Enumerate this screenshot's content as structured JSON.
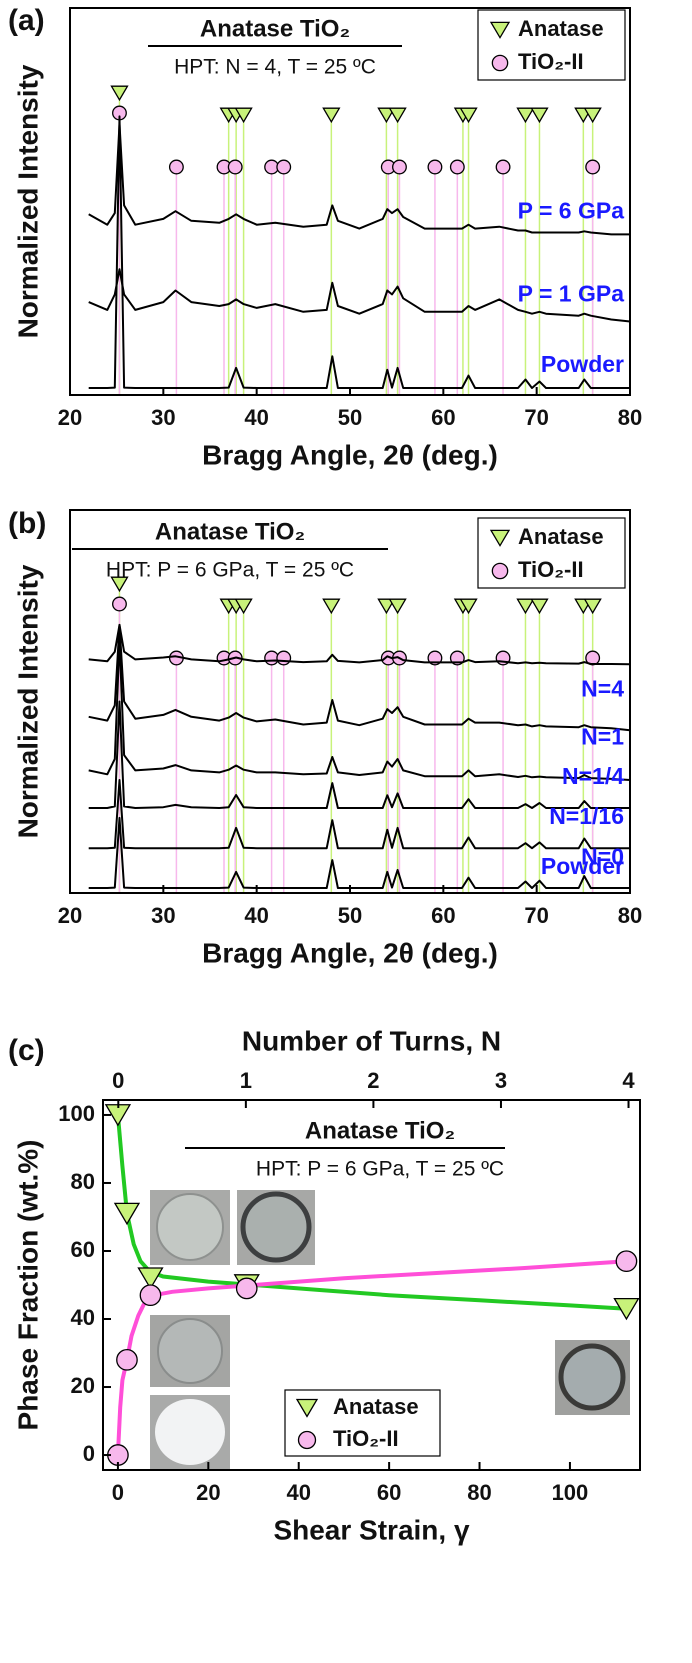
{
  "chart_data": [
    {
      "type": "line",
      "panel_label": "(a)",
      "title": "Anatase TiO₂",
      "subtitle": "HPT: N = 4, T = 25 ºC",
      "xlabel": "Bragg Angle, 2θ (deg.)",
      "ylabel": "Normalized Intensity",
      "xlim": [
        20,
        80
      ],
      "xticks": [
        20,
        30,
        40,
        50,
        60,
        70,
        80
      ],
      "ylim": [
        0,
        100
      ],
      "x": [
        22,
        24,
        24.8,
        25.3,
        25.8,
        27,
        30,
        31.3,
        33,
        36,
        37,
        37.8,
        38.6,
        40,
        42,
        45,
        47.5,
        48.1,
        48.7,
        51,
        53.5,
        54,
        54.5,
        55.1,
        55.7,
        58,
        62,
        62.7,
        63.4,
        66,
        68,
        68.8,
        69.5,
        70.3,
        71,
        74.5,
        75.1,
        75.8,
        78,
        80
      ],
      "series": [
        {
          "name": "P = 6 GPa",
          "color": "#000000",
          "values": [
            46.7,
            44,
            47,
            70,
            49,
            44,
            45.5,
            47.5,
            45,
            44.5,
            45.5,
            46.7,
            45.5,
            44,
            44.5,
            43.5,
            44,
            49,
            45,
            43,
            45.5,
            48,
            47,
            48,
            46,
            43,
            43,
            44,
            43,
            43.5,
            42.5,
            42.5,
            42,
            42,
            42,
            42,
            42.3,
            42,
            41.5,
            41.5
          ]
        },
        {
          "name": "P = 1 GPa",
          "color": "#000000",
          "values": [
            24,
            22,
            26,
            32.5,
            26,
            22,
            24,
            27,
            24,
            23,
            23.5,
            24.7,
            23.5,
            22.5,
            23.5,
            21.5,
            22,
            29,
            23,
            21,
            23.5,
            27,
            26,
            28,
            25,
            21.5,
            21.5,
            23,
            22,
            24.7,
            22,
            21.5,
            21,
            21.5,
            21,
            20.5,
            21,
            20.5,
            19.5,
            19
          ]
        },
        {
          "name": "Powder",
          "color": "#000000",
          "values": [
            1.8,
            1.8,
            1.9,
            72,
            1.9,
            1.8,
            1.8,
            1.8,
            1.8,
            1.8,
            1.9,
            7,
            1.9,
            1.8,
            1.8,
            1.8,
            1.8,
            10,
            1.8,
            1.8,
            1.8,
            6.5,
            1.9,
            7,
            1.8,
            1.8,
            1.8,
            5,
            1.8,
            1.8,
            1.8,
            4,
            1.8,
            3.5,
            1.8,
            1.8,
            4,
            1.8,
            1.8,
            1.8
          ]
        }
      ],
      "reference_peaks": [
        {
          "name": "Anatase",
          "color": "#c8f27a",
          "marker": "triangle",
          "positions": [
            25.3,
            37.0,
            37.8,
            38.6,
            48.0,
            53.9,
            55.1,
            62.1,
            62.7,
            68.8,
            70.3,
            75.0,
            76.0
          ]
        },
        {
          "name": "TiO₂-II",
          "color": "#f7b8ec",
          "marker": "circle",
          "positions": [
            25.3,
            31.4,
            36.5,
            37.7,
            41.6,
            42.9,
            54.1,
            55.3,
            59.1,
            61.5,
            66.4,
            76.0
          ]
        }
      ]
    },
    {
      "type": "line",
      "panel_label": "(b)",
      "title": "Anatase TiO₂",
      "subtitle": "HPT: P = 6 GPa, T = 25 ºC",
      "xlabel": "Bragg Angle, 2θ (deg.)",
      "ylabel": "Normalized Intensity",
      "xlim": [
        20,
        80
      ],
      "xticks": [
        20,
        30,
        40,
        50,
        60,
        70,
        80
      ],
      "ylim": [
        0,
        100
      ],
      "x": [
        22,
        24,
        24.8,
        25.3,
        25.8,
        27,
        30,
        31.3,
        33,
        36,
        37,
        37.8,
        38.6,
        40,
        42,
        45,
        47.5,
        48.1,
        48.7,
        51,
        53.5,
        54,
        54.5,
        55.1,
        55.7,
        58,
        62,
        62.7,
        63.4,
        66,
        68,
        68.8,
        69.5,
        70.3,
        71,
        74.5,
        75.1,
        75.8,
        78,
        80
      ],
      "series": [
        {
          "name": "N=4",
          "color": "#000000",
          "values": [
            61,
            60.5,
            63,
            70,
            63,
            61,
            61.5,
            61.8,
            61,
            60.5,
            61,
            61.5,
            61,
            60.5,
            60.7,
            60.3,
            60.5,
            62.2,
            60.6,
            60.2,
            60.8,
            61.8,
            61.3,
            61.6,
            60.8,
            60.2,
            60.2,
            60.8,
            60.3,
            60.5,
            60,
            60.2,
            60,
            60.1,
            60,
            59.9,
            60.3,
            59.8,
            59.8,
            59.7
          ]
        },
        {
          "name": "N=1",
          "color": "#000000",
          "values": [
            46,
            45,
            49,
            70,
            50,
            45.5,
            46.5,
            47.8,
            46,
            45,
            45.8,
            47,
            45.8,
            44.8,
            45.3,
            44,
            44.5,
            50.4,
            45,
            43.8,
            45.5,
            48,
            47,
            48.5,
            46,
            44,
            44,
            45.5,
            44.5,
            44.5,
            43.8,
            44,
            43.5,
            43.8,
            43.5,
            43.3,
            43.8,
            43.3,
            43,
            42.5
          ]
        },
        {
          "name": "N=1/4",
          "color": "#000000",
          "values": [
            32,
            31,
            35,
            66,
            36,
            32,
            32.5,
            33.4,
            32,
            31.5,
            32.2,
            33.3,
            32.2,
            31.5,
            31.5,
            31,
            31.2,
            35.5,
            31.5,
            30.8,
            31.5,
            34.3,
            33,
            35,
            32,
            30.5,
            30.5,
            32,
            30.5,
            31,
            30.3,
            30.6,
            30.2,
            30.4,
            30.2,
            30,
            30.8,
            30,
            29.8,
            29.5
          ]
        },
        {
          "name": "N=1/16",
          "color": "#000000",
          "values": [
            22.2,
            22.2,
            22.6,
            50,
            22.6,
            22.2,
            22.4,
            23,
            22.4,
            22.2,
            22.4,
            25.6,
            22.4,
            22.2,
            22.2,
            22.2,
            22.2,
            28.7,
            22.2,
            22.2,
            22.2,
            25.5,
            22.4,
            26,
            22.2,
            22.2,
            22.2,
            24.5,
            22.2,
            22.2,
            22.2,
            23.2,
            22.2,
            23.5,
            22.2,
            22.2,
            24,
            22.2,
            22.2,
            22.2
          ]
        },
        {
          "name": "N=0",
          "color": "#000000",
          "values": [
            11.7,
            11.7,
            11.8,
            29.5,
            11.8,
            11.7,
            11.7,
            11.7,
            11.7,
            11.7,
            11.8,
            17,
            11.8,
            11.7,
            11.7,
            11.7,
            11.7,
            19,
            11.7,
            11.7,
            11.7,
            16.5,
            11.8,
            17,
            11.7,
            11.7,
            11.7,
            14.5,
            11.7,
            11.7,
            11.7,
            13,
            11.7,
            13.2,
            11.7,
            11.7,
            14.2,
            11.7,
            11.7,
            11.7
          ]
        },
        {
          "name": "Powder",
          "color": "#000000",
          "values": [
            1.3,
            1.3,
            1.4,
            19.6,
            1.4,
            1.3,
            1.3,
            1.3,
            1.3,
            1.3,
            1.4,
            5.5,
            1.4,
            1.3,
            1.3,
            1.3,
            1.3,
            8.6,
            1.3,
            1.3,
            1.3,
            5.5,
            1.4,
            6,
            1.3,
            1.3,
            1.3,
            4,
            1.3,
            1.3,
            1.3,
            3,
            1.3,
            3.2,
            1.3,
            1.3,
            4.4,
            1.3,
            1.3,
            1.3
          ]
        }
      ],
      "reference_peaks": [
        {
          "name": "Anatase",
          "color": "#c8f27a",
          "marker": "triangle",
          "positions": [
            25.3,
            37.0,
            37.8,
            38.6,
            48.0,
            53.9,
            55.1,
            62.1,
            62.7,
            68.8,
            70.3,
            75.0,
            76.0
          ]
        },
        {
          "name": "TiO₂-II",
          "color": "#f7b8ec",
          "marker": "circle",
          "positions": [
            25.3,
            31.4,
            36.5,
            37.7,
            41.6,
            42.9,
            54.1,
            55.3,
            59.1,
            61.5,
            66.4,
            76.0
          ]
        }
      ]
    },
    {
      "type": "scatter",
      "panel_label": "(c)",
      "title": "Anatase TiO₂",
      "subtitle": "HPT: P = 6 GPa, T = 25 ºC",
      "xlabel": "Shear Strain, γ",
      "x2label": "Number of Turns, N",
      "ylabel": "Phase Fraction (wt.%)",
      "xlim": [
        -3.3,
        115.5
      ],
      "xticks": [
        0,
        20,
        40,
        60,
        80,
        100
      ],
      "x2lim": [
        -0.12,
        4.09
      ],
      "x2ticks": [
        0,
        1,
        2,
        3,
        4
      ],
      "ylim": [
        -4.4,
        104.4
      ],
      "yticks": [
        0,
        20,
        40,
        60,
        80,
        100
      ],
      "series": [
        {
          "name": "Anatase",
          "color": "#c8f27a",
          "marker": "triangle",
          "x": [
            0,
            2,
            7.2,
            28.5,
            112.5
          ],
          "values": [
            100,
            71,
            52,
            50,
            43
          ]
        },
        {
          "name": "TiO₂-II",
          "color": "#f7b8ec",
          "marker": "circle",
          "x": [
            0,
            2,
            7.2,
            28.5,
            112.5
          ],
          "values": [
            0,
            28,
            47,
            49,
            57
          ]
        }
      ],
      "fits": [
        {
          "color": "#22c922",
          "x": [
            0,
            1,
            2,
            3.5,
            5,
            7,
            10,
            20,
            30,
            45,
            60,
            80,
            100,
            112.5
          ],
          "values": [
            100,
            85,
            71,
            62,
            57,
            54,
            52.5,
            51,
            50,
            48.5,
            47,
            45.5,
            44,
            43
          ]
        },
        {
          "color": "#ff4fd8",
          "x": [
            0,
            0.5,
            1,
            2,
            3,
            4.5,
            6,
            8,
            12,
            20,
            30,
            50,
            70,
            90,
            112.5
          ],
          "values": [
            0,
            14,
            22,
            28,
            35,
            41,
            45,
            47,
            48,
            49,
            50,
            52,
            53.5,
            55,
            57
          ]
        }
      ]
    }
  ]
}
